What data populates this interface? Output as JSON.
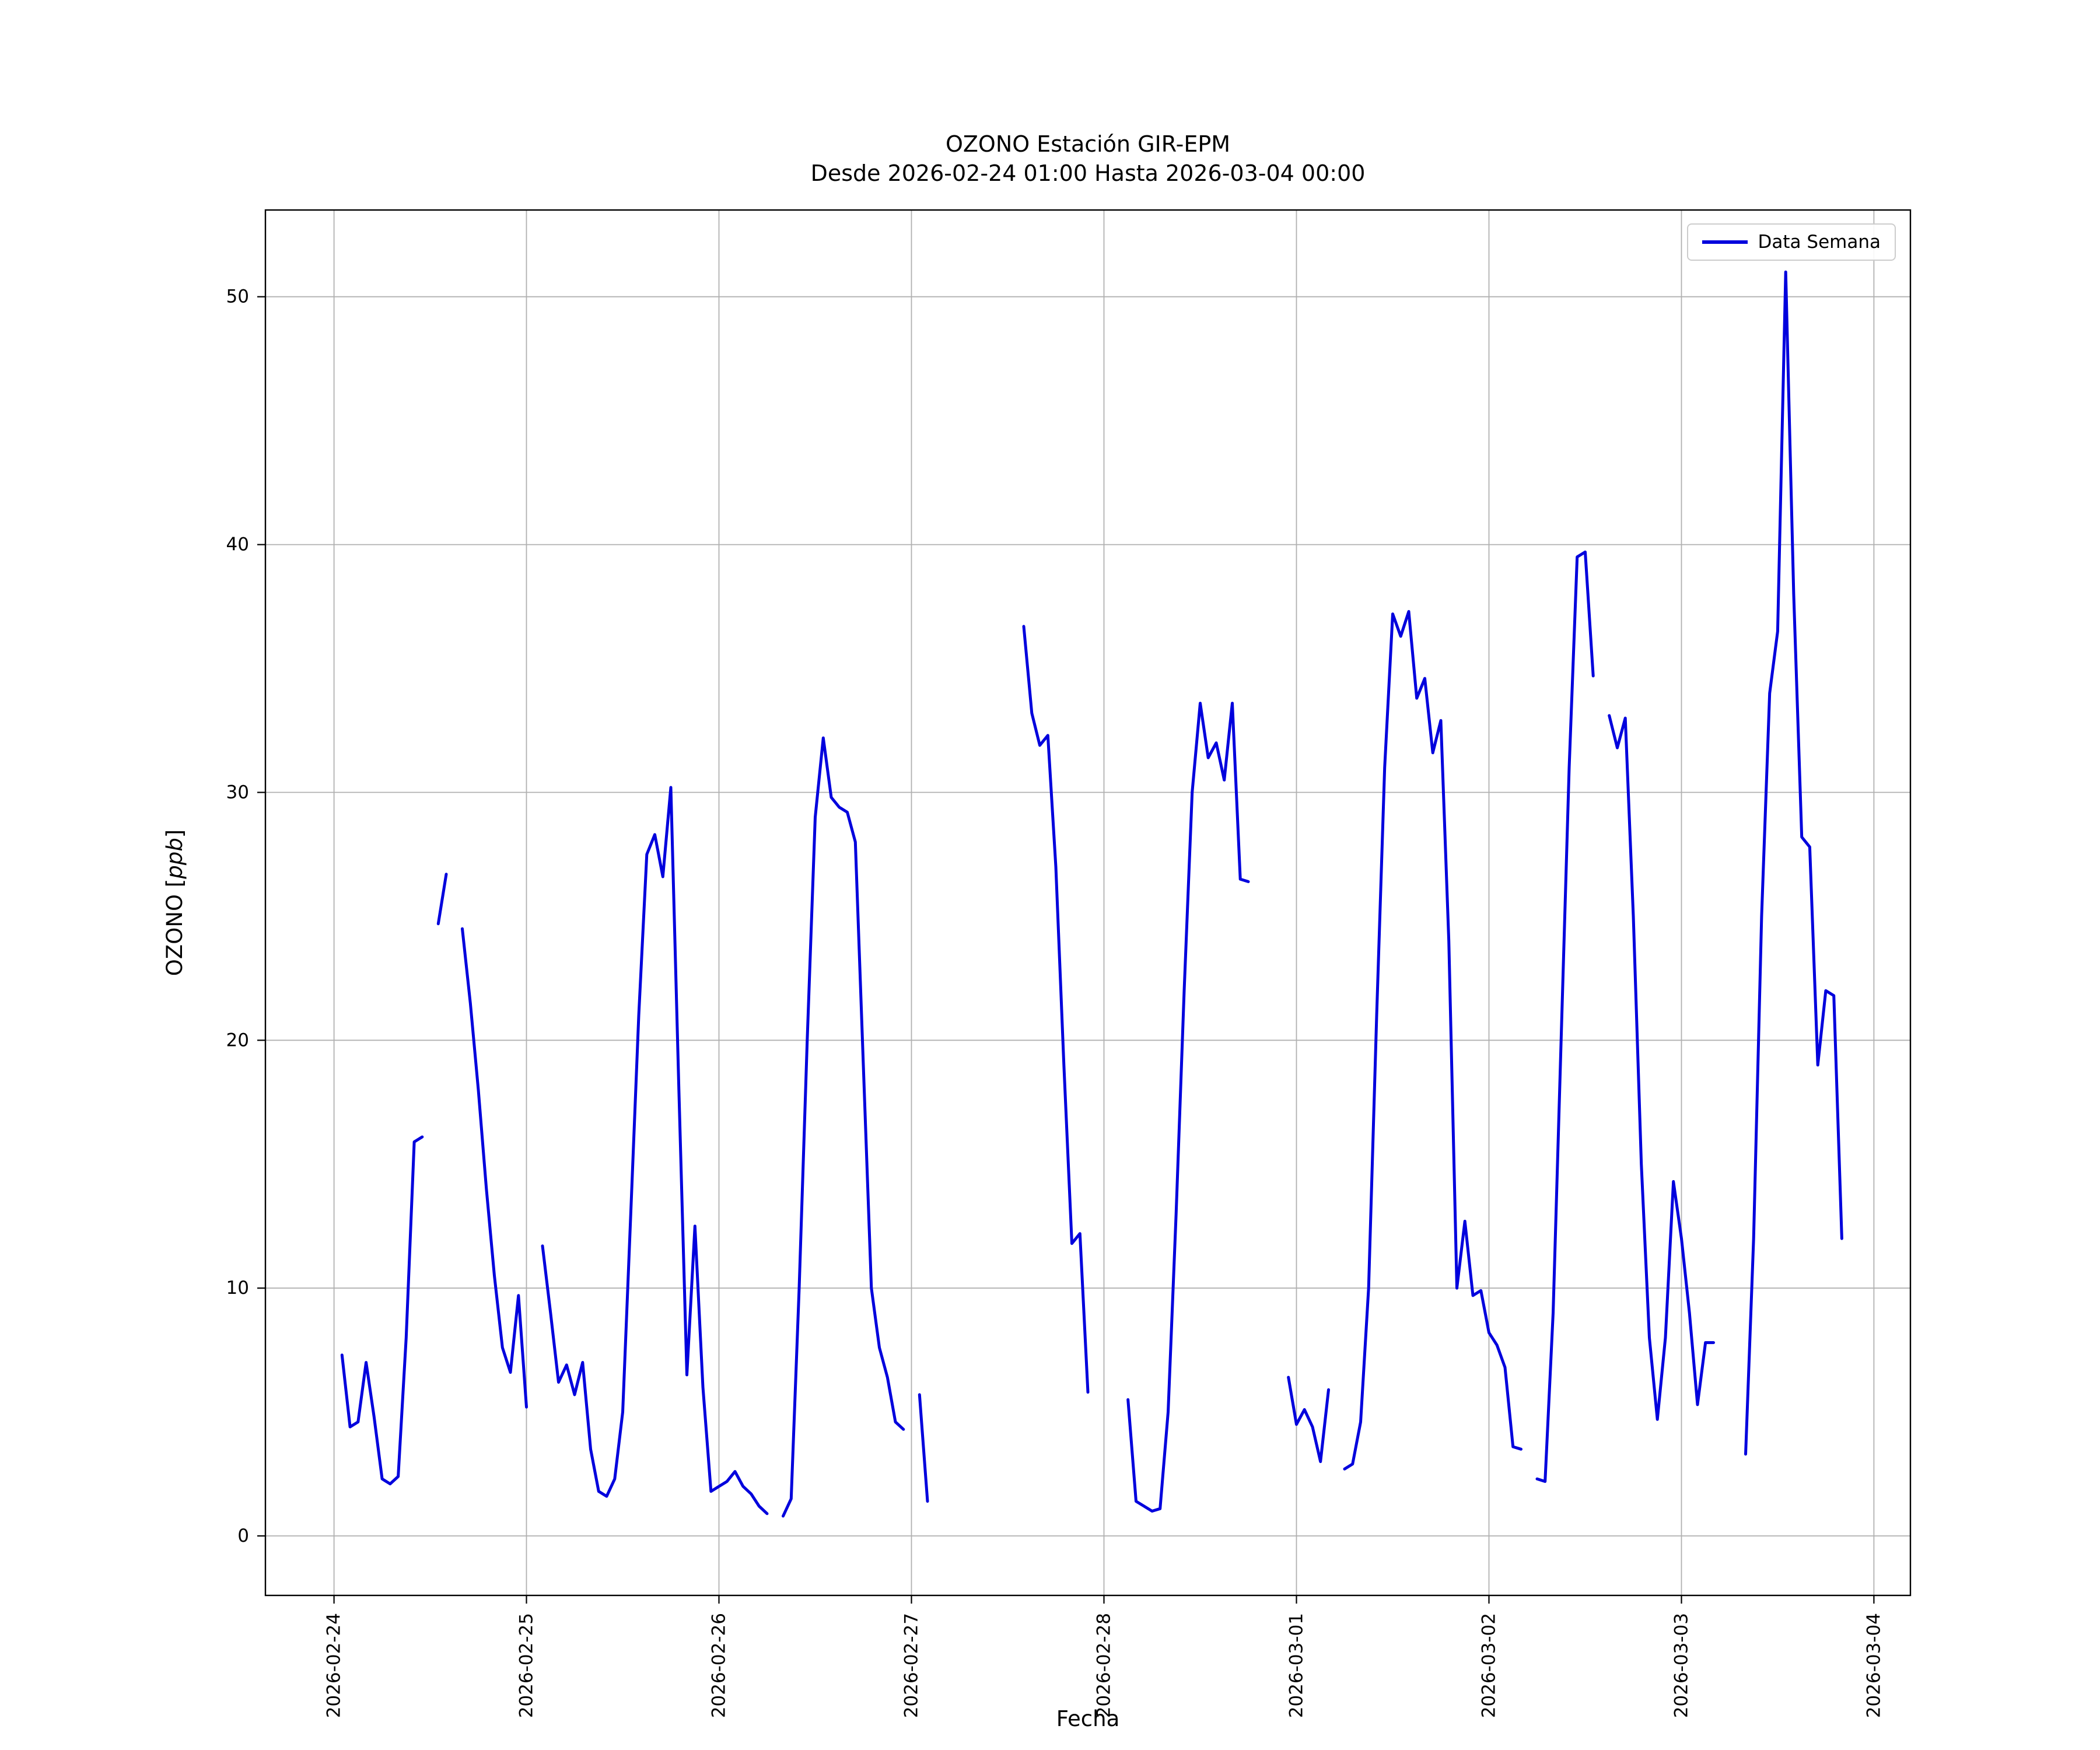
{
  "title": {
    "line1": "OZONO Estación GIR-EPM",
    "line2": "Desde 2026-02-24 01:00 Hasta 2026-03-04 00:00"
  },
  "axes": {
    "xlabel": "Fecha",
    "ylabel_prefix": "OZONO [",
    "ylabel_unit_italic": "ppb",
    "ylabel_suffix": "]"
  },
  "legend": {
    "items": [
      {
        "label": "Data Semana",
        "color": "#0000dd"
      }
    ]
  },
  "chart_data": {
    "type": "line",
    "title": "OZONO Estación GIR-EPM",
    "subtitle": "Desde 2026-02-24 01:00 Hasta 2026-03-04 00:00",
    "xlabel": "Fecha",
    "ylabel": "OZONO [ppb]",
    "series_name": "Data Semana",
    "line_color": "#0000dd",
    "grid": true,
    "grid_color": "#b0b0b0",
    "legend_position": "upper right",
    "x_unit": "hours since 2026-02-24 00:00",
    "xlim_hours": [
      -8.55,
      196.55
    ],
    "ylim": [
      -2.4,
      53.5
    ],
    "yticks": [
      0,
      10,
      20,
      30,
      40,
      50
    ],
    "xticks": [
      {
        "hour": 0,
        "label": "2026-02-24"
      },
      {
        "hour": 24,
        "label": "2026-02-25"
      },
      {
        "hour": 48,
        "label": "2026-02-26"
      },
      {
        "hour": 72,
        "label": "2026-02-27"
      },
      {
        "hour": 96,
        "label": "2026-02-28"
      },
      {
        "hour": 120,
        "label": "2026-03-01"
      },
      {
        "hour": 144,
        "label": "2026-03-02"
      },
      {
        "hour": 168,
        "label": "2026-03-03"
      },
      {
        "hour": 192,
        "label": "2026-03-04"
      }
    ],
    "segments": [
      [
        [
          1,
          7.3
        ],
        [
          2,
          4.4
        ],
        [
          3,
          4.6
        ],
        [
          4,
          7.0
        ],
        [
          5,
          4.8
        ],
        [
          6,
          2.3
        ],
        [
          7,
          2.1
        ],
        [
          8,
          2.4
        ],
        [
          9,
          8.0
        ],
        [
          10,
          15.9
        ],
        [
          11,
          16.1
        ]
      ],
      [
        [
          13,
          24.7
        ],
        [
          14,
          26.7
        ]
      ],
      [
        [
          16,
          24.5
        ],
        [
          17,
          21.5
        ],
        [
          18,
          18.0
        ],
        [
          19,
          14.0
        ],
        [
          20,
          10.5
        ],
        [
          21,
          7.6
        ],
        [
          22,
          6.6
        ],
        [
          23,
          9.7
        ],
        [
          24,
          5.2
        ]
      ],
      [
        [
          26,
          11.7
        ],
        [
          27,
          9.0
        ],
        [
          28,
          6.2
        ],
        [
          29,
          6.9
        ],
        [
          30,
          5.7
        ],
        [
          31,
          7.0
        ],
        [
          32,
          3.5
        ],
        [
          33,
          1.8
        ],
        [
          34,
          1.6
        ],
        [
          35,
          2.3
        ],
        [
          36,
          5.0
        ],
        [
          37,
          13.0
        ],
        [
          38,
          21.0
        ],
        [
          39,
          27.5
        ],
        [
          40,
          28.3
        ],
        [
          41,
          26.6
        ],
        [
          42,
          30.2
        ],
        [
          43,
          18.0
        ],
        [
          44,
          6.5
        ],
        [
          45,
          12.5
        ],
        [
          46,
          6.0
        ],
        [
          47,
          1.8
        ],
        [
          48,
          2.0
        ],
        [
          49,
          2.2
        ],
        [
          50,
          2.6
        ],
        [
          51,
          2.0
        ],
        [
          52,
          1.7
        ],
        [
          53,
          1.2
        ],
        [
          54,
          0.9
        ]
      ],
      [
        [
          56,
          0.8
        ],
        [
          57,
          1.5
        ],
        [
          58,
          10.0
        ],
        [
          59,
          20.0
        ],
        [
          60,
          29.0
        ],
        [
          61,
          32.2
        ],
        [
          62,
          29.8
        ],
        [
          63,
          29.4
        ],
        [
          64,
          29.2
        ],
        [
          65,
          28.0
        ],
        [
          66,
          19.0
        ],
        [
          67,
          10.0
        ],
        [
          68,
          7.6
        ],
        [
          69,
          6.4
        ],
        [
          70,
          4.6
        ],
        [
          71,
          4.3
        ]
      ],
      [
        [
          73,
          5.7
        ],
        [
          74,
          1.4
        ]
      ],
      [
        [
          86,
          36.7
        ],
        [
          87,
          33.2
        ],
        [
          88,
          31.9
        ],
        [
          89,
          32.3
        ],
        [
          90,
          27.0
        ],
        [
          91,
          19.0
        ],
        [
          92,
          11.8
        ],
        [
          93,
          12.2
        ],
        [
          94,
          5.8
        ]
      ],
      [
        [
          99,
          5.5
        ],
        [
          100,
          1.4
        ],
        [
          101,
          1.2
        ],
        [
          102,
          1.0
        ],
        [
          103,
          1.1
        ],
        [
          104,
          5.0
        ],
        [
          105,
          13.0
        ],
        [
          106,
          22.0
        ],
        [
          107,
          30.0
        ],
        [
          108,
          33.6
        ],
        [
          109,
          31.4
        ],
        [
          110,
          32.0
        ],
        [
          111,
          30.5
        ],
        [
          112,
          33.6
        ],
        [
          113,
          26.5
        ],
        [
          114,
          26.4
        ]
      ],
      [
        [
          119,
          6.4
        ],
        [
          120,
          4.5
        ],
        [
          121,
          5.1
        ],
        [
          122,
          4.4
        ],
        [
          123,
          3.0
        ],
        [
          124,
          5.9
        ]
      ],
      [
        [
          126,
          2.7
        ],
        [
          127,
          2.9
        ],
        [
          128,
          4.6
        ],
        [
          129,
          10.0
        ],
        [
          130,
          21.0
        ],
        [
          131,
          31.0
        ],
        [
          132,
          37.2
        ],
        [
          133,
          36.3
        ],
        [
          134,
          37.3
        ],
        [
          135,
          33.8
        ],
        [
          136,
          34.6
        ],
        [
          137,
          31.6
        ],
        [
          138,
          32.9
        ],
        [
          139,
          24.0
        ],
        [
          140,
          10.0
        ],
        [
          141,
          12.7
        ],
        [
          142,
          9.7
        ],
        [
          143,
          9.9
        ],
        [
          144,
          8.2
        ],
        [
          145,
          7.7
        ],
        [
          146,
          6.8
        ],
        [
          147,
          3.6
        ],
        [
          148,
          3.5
        ]
      ],
      [
        [
          150,
          2.3
        ],
        [
          151,
          2.2
        ],
        [
          152,
          9.0
        ],
        [
          153,
          20.0
        ],
        [
          154,
          31.0
        ],
        [
          155,
          39.5
        ],
        [
          156,
          39.7
        ],
        [
          157,
          34.7
        ]
      ],
      [
        [
          159,
          33.1
        ],
        [
          160,
          31.8
        ],
        [
          161,
          33.0
        ],
        [
          162,
          25.0
        ],
        [
          163,
          15.0
        ],
        [
          164,
          8.0
        ],
        [
          165,
          4.7
        ],
        [
          166,
          8.0
        ],
        [
          167,
          14.3
        ],
        [
          168,
          12.0
        ],
        [
          169,
          9.0
        ],
        [
          170,
          5.3
        ],
        [
          171,
          7.8
        ],
        [
          172,
          7.8
        ]
      ],
      [
        [
          176,
          3.3
        ],
        [
          177,
          12.0
        ],
        [
          178,
          25.0
        ],
        [
          179,
          34.0
        ],
        [
          180,
          36.5
        ],
        [
          181,
          51.0
        ],
        [
          182,
          38.0
        ],
        [
          183,
          28.2
        ],
        [
          184,
          27.8
        ],
        [
          185,
          19.0
        ],
        [
          186,
          22.0
        ],
        [
          187,
          21.8
        ],
        [
          188,
          12.0
        ]
      ]
    ]
  }
}
